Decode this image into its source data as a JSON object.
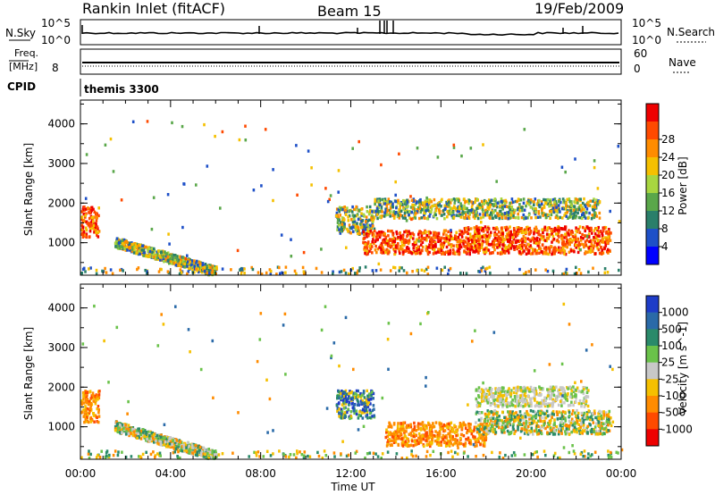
{
  "header": {
    "title": "Rankin Inlet (fitACF)",
    "beam": "Beam 15",
    "date": "19/Feb/2009"
  },
  "noise_panel": {
    "left_label": "N.Sky",
    "left_ticks": [
      "10^5",
      "10^0"
    ],
    "right_ticks": [
      "10^5",
      "10^0"
    ],
    "right_label": "N.Search"
  },
  "freq_panel": {
    "left_label_1": "Freq.",
    "left_label_2": "[MHz]",
    "left_tick": "8",
    "right_ticks": [
      "60",
      "0"
    ],
    "right_label": "Nave"
  },
  "cpid": {
    "label": "CPID",
    "value": "themis 3300"
  },
  "chart_data": [
    {
      "type": "heatmap",
      "panel": "power",
      "ylabel": "Slant Range [km]",
      "ylim": [
        180,
        4600
      ],
      "yticks": [
        1000,
        2000,
        3000,
        4000
      ],
      "colorbar_label": "Power [dB]",
      "colorbar_ticks": [
        "4",
        "8",
        "12",
        "16",
        "20",
        "24",
        "28"
      ],
      "colorbar_range": [
        0,
        32
      ],
      "colors": [
        "#0000ff",
        "#1e50c8",
        "#2a7f6a",
        "#5aa74a",
        "#a8d640",
        "#f5c000",
        "#ff8c00",
        "#ff4a00",
        "#ee0000"
      ],
      "features": [
        {
          "t_start": 0.0,
          "t_end": 0.8,
          "r_min": 1100,
          "r_max": 1900,
          "level": "high"
        },
        {
          "t_start": 1.5,
          "t_end": 6.0,
          "r_min": 200,
          "r_max": 1050,
          "level": "medium"
        },
        {
          "t_start": 11.3,
          "t_end": 13.0,
          "r_min": 1200,
          "r_max": 1900,
          "level": "medium"
        },
        {
          "t_start": 12.5,
          "t_end": 17.0,
          "r_min": 700,
          "r_max": 1300,
          "level": "high"
        },
        {
          "t_start": 17.0,
          "t_end": 23.5,
          "r_min": 700,
          "r_max": 1400,
          "level": "high"
        },
        {
          "t_start": 13.0,
          "t_end": 23.0,
          "r_min": 1600,
          "r_max": 2100,
          "level": "medium"
        }
      ]
    },
    {
      "type": "heatmap",
      "panel": "velocity",
      "xlabel": "Time UT",
      "xticks": [
        "00:00",
        "04:00",
        "08:00",
        "12:00",
        "16:00",
        "20:00",
        "00:00"
      ],
      "xlim": [
        0,
        24
      ],
      "ylabel": "Slant Range [km]",
      "ylim": [
        180,
        4600
      ],
      "yticks": [
        1000,
        2000,
        3000,
        4000
      ],
      "colorbar_label": "Velocity [m s^-1]",
      "colorbar_ticks": [
        "1000",
        "500",
        "100",
        "25",
        "-25",
        "-100",
        "-500",
        "-1000"
      ],
      "colors": [
        "#1e3cc8",
        "#2a6aa8",
        "#2a8a6a",
        "#6ac24a",
        "#c8c8c8",
        "#f5c000",
        "#ff8c00",
        "#ff4a00",
        "#ee0000"
      ],
      "features": [
        {
          "t_start": 0.0,
          "t_end": 0.8,
          "r_min": 1100,
          "r_max": 1900,
          "level": "negative"
        },
        {
          "t_start": 1.5,
          "t_end": 6.0,
          "r_min": 200,
          "r_max": 1050,
          "level": "mixed"
        },
        {
          "t_start": 11.3,
          "t_end": 13.0,
          "r_min": 1200,
          "r_max": 1900,
          "level": "positive"
        },
        {
          "t_start": 13.5,
          "t_end": 18.0,
          "r_min": 500,
          "r_max": 1100,
          "level": "negative"
        },
        {
          "t_start": 17.5,
          "t_end": 23.5,
          "r_min": 800,
          "r_max": 1400,
          "level": "mixed"
        },
        {
          "t_start": 17.5,
          "t_end": 22.5,
          "r_min": 1500,
          "r_max": 2000,
          "level": "near-zero"
        }
      ]
    }
  ]
}
